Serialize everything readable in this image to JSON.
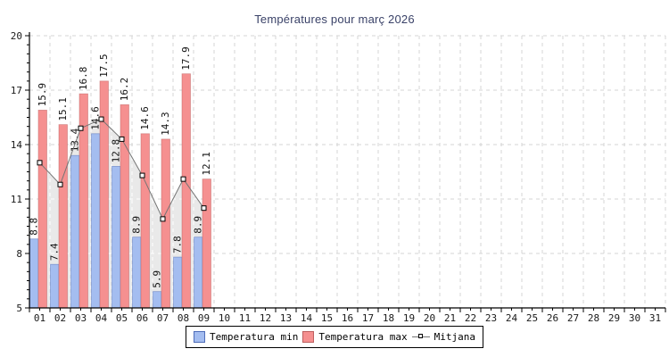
{
  "title": "Températures pour març 2026",
  "legend": {
    "items": [
      {
        "label": "Temperatura min",
        "type": "box",
        "color": "#A4BDF0",
        "border": "#4F6DB8"
      },
      {
        "label": "Temperatura max",
        "type": "box",
        "color": "#F59090",
        "border": "#BE6060"
      },
      {
        "label": "Mitjana",
        "type": "line-marker",
        "color": "#757575"
      }
    ]
  },
  "chart_data": {
    "type": "bar",
    "title": "Températures pour març 2026",
    "categories": [
      "01",
      "02",
      "03",
      "04",
      "05",
      "06",
      "07",
      "08",
      "09",
      "10",
      "11",
      "12",
      "13",
      "14",
      "15",
      "16",
      "17",
      "18",
      "19",
      "20",
      "21",
      "22",
      "23",
      "24",
      "25",
      "26",
      "27",
      "28",
      "29",
      "30",
      "31"
    ],
    "series": [
      {
        "name": "Temperatura min",
        "type": "bar",
        "color": "#A4BDF0",
        "border": "#4F6DB8",
        "values": [
          8.8,
          7.4,
          13.4,
          14.6,
          12.8,
          8.9,
          5.9,
          7.8,
          8.9
        ]
      },
      {
        "name": "Temperatura max",
        "type": "bar",
        "color": "#F59090",
        "border": "#BE6060",
        "values": [
          15.9,
          15.1,
          16.8,
          17.5,
          16.2,
          14.6,
          14.3,
          17.9,
          12.1
        ]
      },
      {
        "name": "Mitjana",
        "type": "line",
        "color": "#757575",
        "area_color": "#E9E9E9",
        "marker": "square",
        "marker_fill": "#FFFFFF",
        "marker_border": "#000000",
        "values": [
          13.0,
          11.8,
          14.9,
          15.4,
          14.3,
          12.3,
          9.9,
          12.1,
          10.5
        ]
      }
    ],
    "xlabel": "",
    "ylabel": "",
    "ylim": [
      5,
      20
    ],
    "yticks": [
      5,
      8,
      11,
      14,
      17,
      20
    ],
    "y_minor_step": 0.5,
    "grid": true,
    "grid_color": "#D4D4D4",
    "axis_color": "#000000",
    "tick_label_color": "#1A1A1A",
    "value_label_color": "#111111",
    "legend_position": "bottom"
  }
}
